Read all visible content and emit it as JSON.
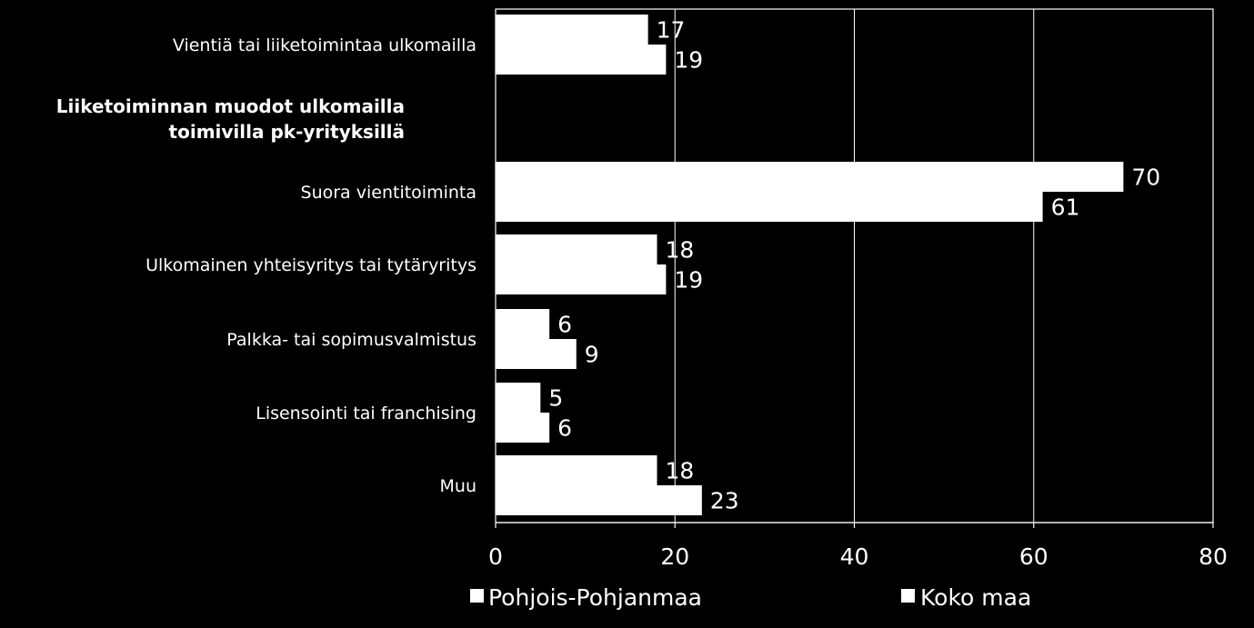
{
  "chart_data": {
    "type": "bar",
    "orientation": "horizontal",
    "title": "",
    "xlabel": "",
    "ylabel": "",
    "xlim": [
      0,
      80
    ],
    "x_ticks": [
      0,
      20,
      40,
      60,
      80
    ],
    "grid": true,
    "legend_position": "bottom",
    "bar_color": "#ffffff",
    "background_color": "#000000",
    "categories": [
      "Vientiä tai liiketoimintaa ulkomailla",
      "Suora vientitoiminta",
      "Ulkomainen yhteisyritys tai tytäryritys",
      "Palkka- tai sopimusvalmistus",
      "Lisensointi tai franchising",
      "Muu"
    ],
    "section_heading": [
      "Liiketoiminnan muodot ulkomailla",
      "toimivilla pk-yrityksillä"
    ],
    "series": [
      {
        "name": "Pohjois-Pohjanmaa",
        "values": [
          17,
          70,
          18,
          6,
          5,
          18
        ]
      },
      {
        "name": "Koko maa",
        "values": [
          19,
          61,
          19,
          9,
          6,
          23
        ]
      }
    ]
  }
}
